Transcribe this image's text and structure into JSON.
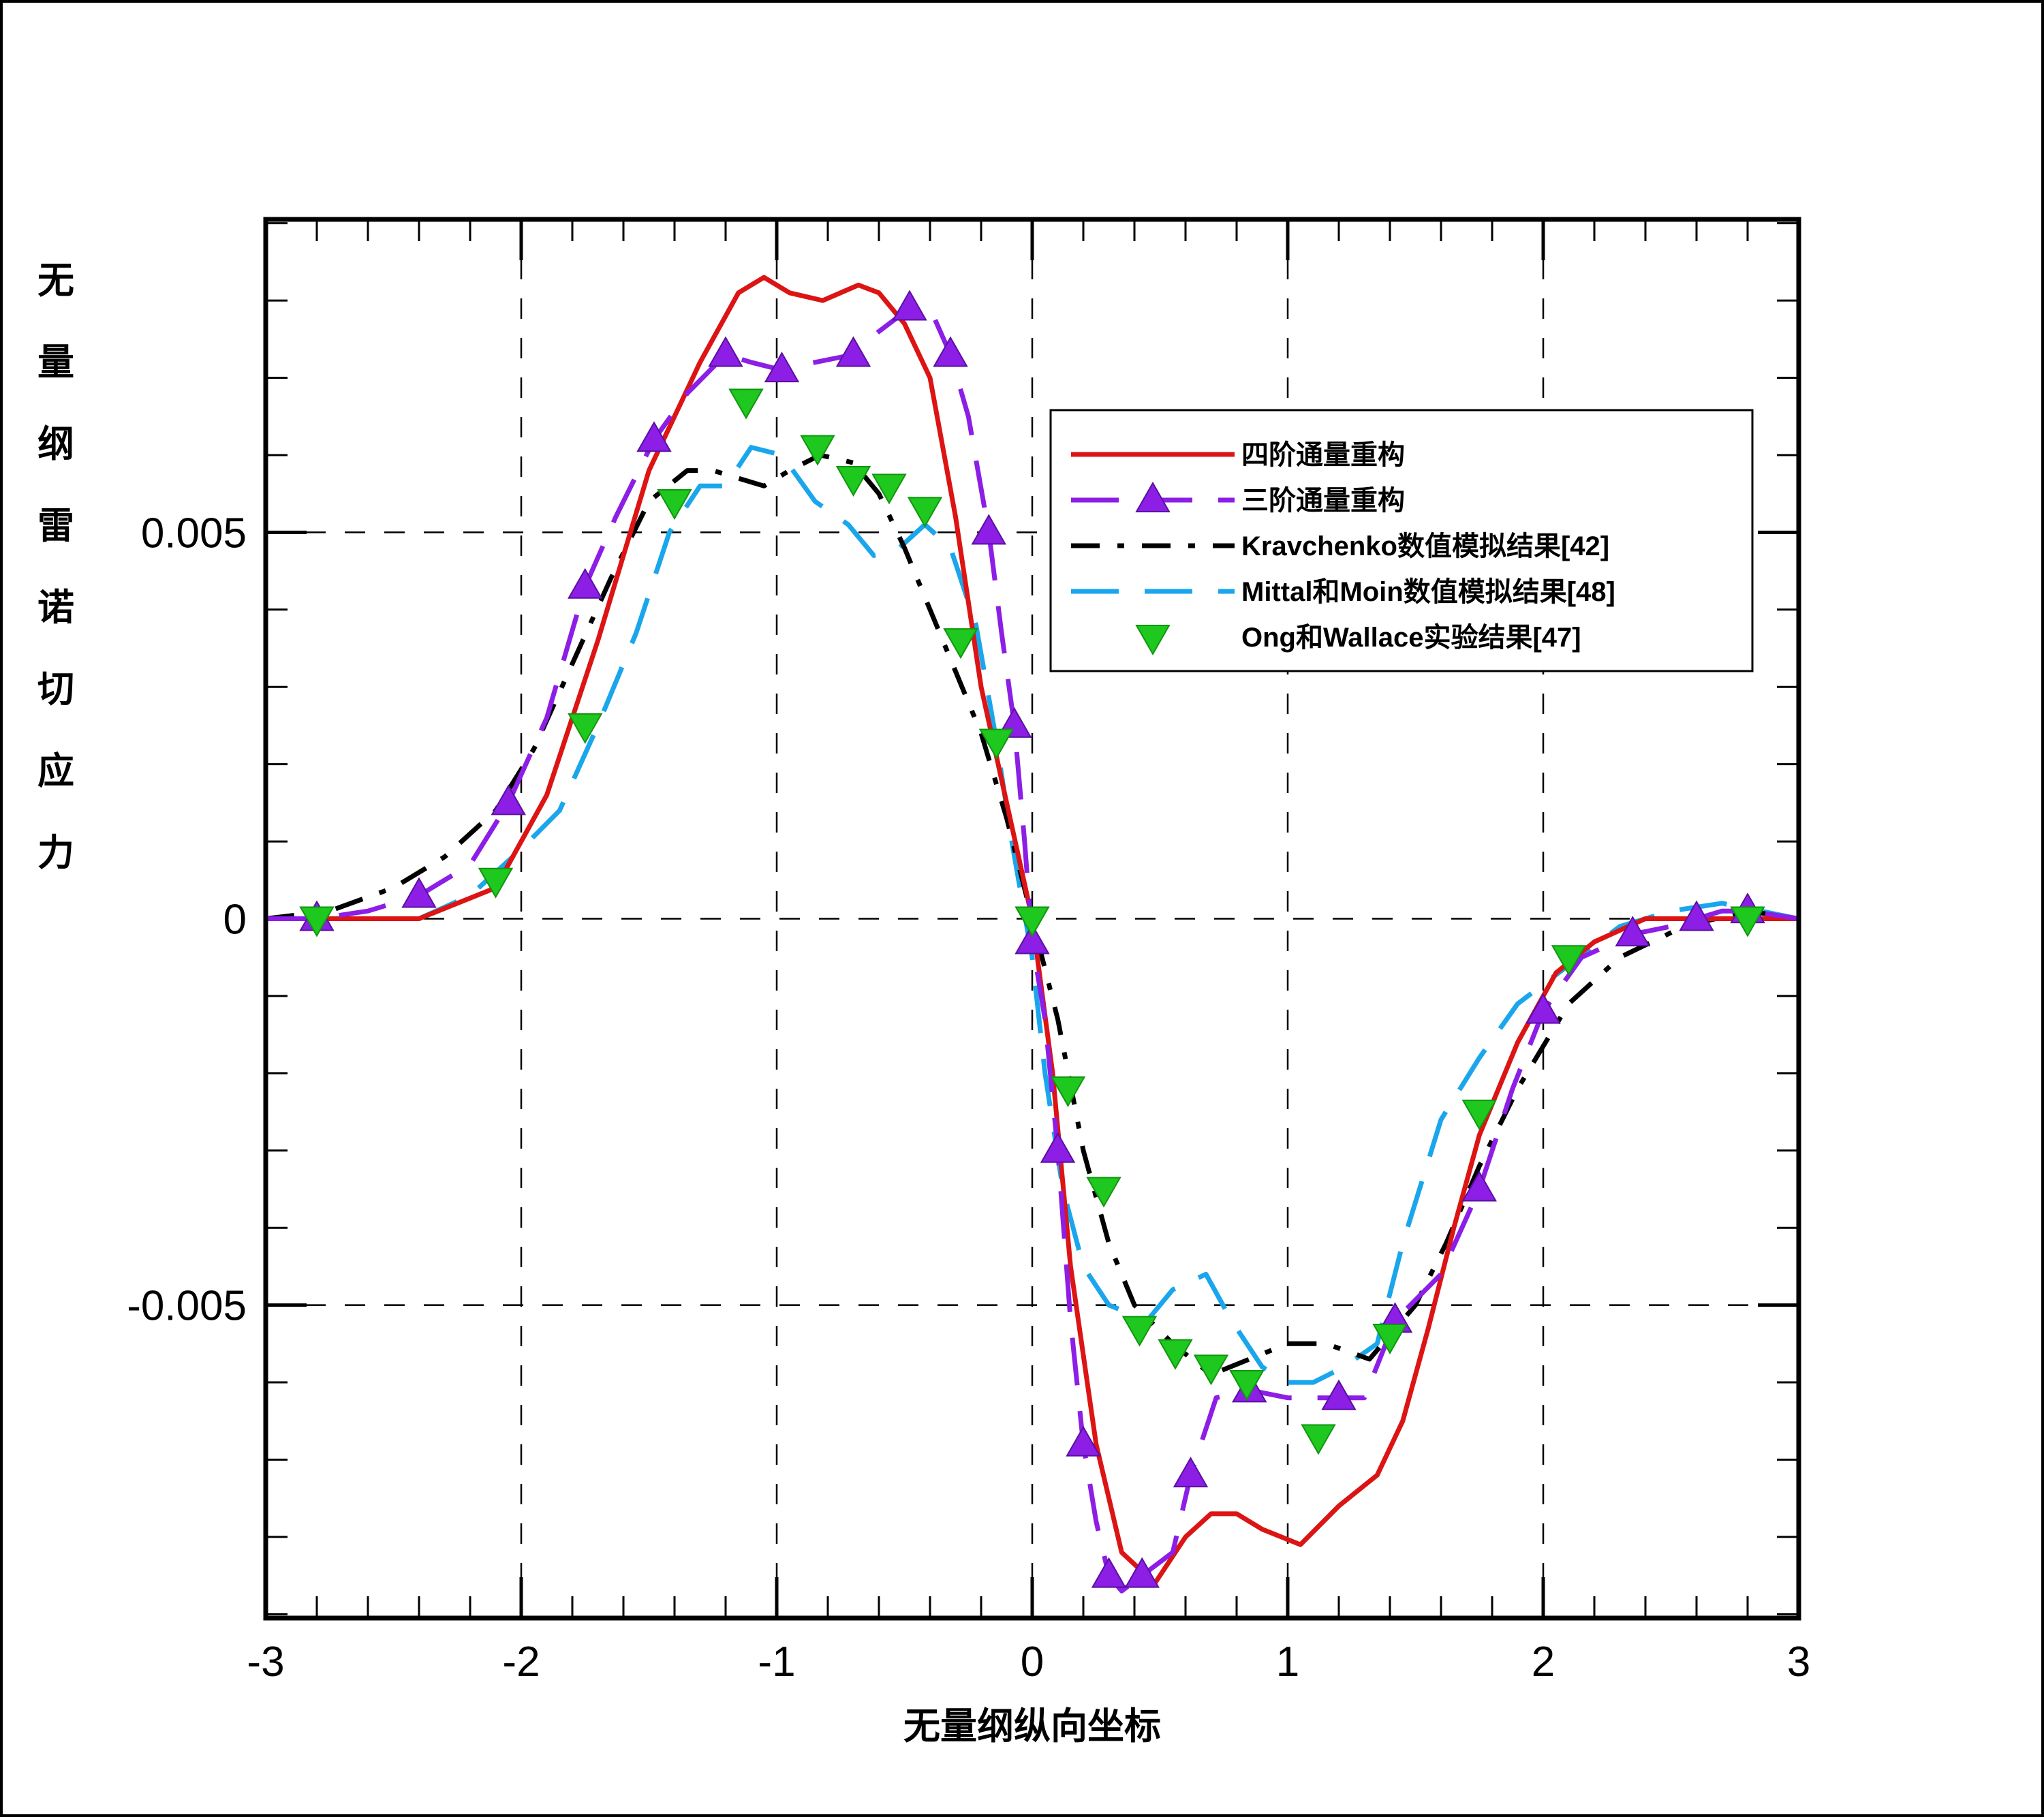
{
  "chart_data": {
    "type": "line",
    "title": "",
    "xlabel": "无量纲纵向坐标",
    "ylabel": "无量纲雷诺切应力",
    "xlim": [
      -3,
      3
    ],
    "ylim": [
      -0.00905,
      0.00905
    ],
    "grid": true,
    "legend_position": "top-right",
    "x_ticks": [
      -3,
      -2,
      -1,
      0,
      1,
      2,
      3
    ],
    "x_tick_labels": [
      "-3",
      "-2",
      "-1",
      "0",
      "1",
      "2",
      "3"
    ],
    "y_ticks": [
      -0.005,
      0,
      0.005
    ],
    "y_tick_labels": [
      "-0.005",
      "0",
      "0.005"
    ],
    "series": [
      {
        "name": "四阶通量重构",
        "color": "#dc1414",
        "style": "solid",
        "marker": "none",
        "points": [
          [
            -3,
            0
          ],
          [
            -2.4,
            0
          ],
          [
            -2.1,
            0.0004
          ],
          [
            -1.9,
            0.0016
          ],
          [
            -1.7,
            0.0036
          ],
          [
            -1.5,
            0.0058
          ],
          [
            -1.3,
            0.0072
          ],
          [
            -1.15,
            0.0081
          ],
          [
            -1.05,
            0.0083
          ],
          [
            -0.95,
            0.0081
          ],
          [
            -0.82,
            0.008
          ],
          [
            -0.68,
            0.0082
          ],
          [
            -0.6,
            0.0081
          ],
          [
            -0.5,
            0.0077
          ],
          [
            -0.4,
            0.007
          ],
          [
            -0.3,
            0.0052
          ],
          [
            -0.2,
            0.003
          ],
          [
            -0.1,
            0.0015
          ],
          [
            0,
            0
          ],
          [
            0.08,
            -0.002
          ],
          [
            0.15,
            -0.0045
          ],
          [
            0.25,
            -0.0068
          ],
          [
            0.35,
            -0.0082
          ],
          [
            0.48,
            -0.0086
          ],
          [
            0.6,
            -0.008
          ],
          [
            0.7,
            -0.0077
          ],
          [
            0.8,
            -0.0077
          ],
          [
            0.9,
            -0.0079
          ],
          [
            1.05,
            -0.0081
          ],
          [
            1.2,
            -0.0076
          ],
          [
            1.35,
            -0.0072
          ],
          [
            1.45,
            -0.0065
          ],
          [
            1.55,
            -0.0053
          ],
          [
            1.65,
            -0.004
          ],
          [
            1.75,
            -0.0028
          ],
          [
            1.9,
            -0.0016
          ],
          [
            2.05,
            -0.0007
          ],
          [
            2.2,
            -0.0003
          ],
          [
            2.4,
            0
          ],
          [
            3,
            0
          ]
        ]
      },
      {
        "name": "三阶通量重构",
        "color": "#8c1ee6",
        "style": "dashed",
        "marker": "triangle-up",
        "points": [
          [
            -3,
            0
          ],
          [
            -2.8,
            0
          ],
          [
            -2.6,
            0.0001
          ],
          [
            -2.4,
            0.0003
          ],
          [
            -2.2,
            0.0007
          ],
          [
            -2.05,
            0.0015
          ],
          [
            -1.9,
            0.0026
          ],
          [
            -1.75,
            0.0043
          ],
          [
            -1.63,
            0.0052
          ],
          [
            -1.48,
            0.0062
          ],
          [
            -1.35,
            0.0068
          ],
          [
            -1.2,
            0.0073
          ],
          [
            -1.1,
            0.0072
          ],
          [
            -0.98,
            0.0071
          ],
          [
            -0.85,
            0.0072
          ],
          [
            -0.7,
            0.0073
          ],
          [
            -0.6,
            0.0076
          ],
          [
            -0.48,
            0.0079
          ],
          [
            -0.4,
            0.0079
          ],
          [
            -0.32,
            0.0073
          ],
          [
            -0.25,
            0.0065
          ],
          [
            -0.17,
            0.005
          ],
          [
            -0.12,
            0.0037
          ],
          [
            -0.07,
            0.0025
          ],
          [
            -0.03,
            0.001
          ],
          [
            0,
            -0.0003
          ],
          [
            0.05,
            -0.0013
          ],
          [
            0.1,
            -0.003
          ],
          [
            0.15,
            -0.0052
          ],
          [
            0.2,
            -0.0068
          ],
          [
            0.25,
            -0.0078
          ],
          [
            0.3,
            -0.0085
          ],
          [
            0.35,
            -0.0087
          ],
          [
            0.43,
            -0.0085
          ],
          [
            0.55,
            -0.0082
          ],
          [
            0.62,
            -0.0072
          ],
          [
            0.72,
            -0.0062
          ],
          [
            0.85,
            -0.0061
          ],
          [
            1.0,
            -0.0062
          ],
          [
            1.2,
            -0.0062
          ],
          [
            1.3,
            -0.0062
          ],
          [
            1.42,
            -0.0052
          ],
          [
            1.6,
            -0.0046
          ],
          [
            1.75,
            -0.0035
          ],
          [
            1.88,
            -0.0022
          ],
          [
            2.0,
            -0.0012
          ],
          [
            2.15,
            -0.0005
          ],
          [
            2.35,
            -0.0002
          ],
          [
            2.5,
            -0.0001
          ],
          [
            2.6,
            0
          ],
          [
            2.7,
            0.0001
          ],
          [
            2.8,
            0.0001
          ],
          [
            3,
            0
          ]
        ]
      },
      {
        "name": "Kravchenko数值模拟结果[42]",
        "color": "#000000",
        "style": "dashdot",
        "marker": "none",
        "points": [
          [
            -3,
            0
          ],
          [
            -2.75,
            0.0001
          ],
          [
            -2.5,
            0.0004
          ],
          [
            -2.3,
            0.0008
          ],
          [
            -2.1,
            0.0014
          ],
          [
            -1.95,
            0.0022
          ],
          [
            -1.8,
            0.0033
          ],
          [
            -1.65,
            0.0044
          ],
          [
            -1.5,
            0.0054
          ],
          [
            -1.35,
            0.0058
          ],
          [
            -1.25,
            0.0058
          ],
          [
            -1.15,
            0.0057
          ],
          [
            -1.05,
            0.0056
          ],
          [
            -0.95,
            0.0058
          ],
          [
            -0.83,
            0.006
          ],
          [
            -0.7,
            0.0059
          ],
          [
            -0.6,
            0.0055
          ],
          [
            -0.5,
            0.0048
          ],
          [
            -0.4,
            0.004
          ],
          [
            -0.3,
            0.0032
          ],
          [
            -0.2,
            0.0024
          ],
          [
            -0.1,
            0.0013
          ],
          [
            0,
            0
          ],
          [
            0.1,
            -0.0013
          ],
          [
            0.2,
            -0.003
          ],
          [
            0.3,
            -0.0042
          ],
          [
            0.4,
            -0.005
          ],
          [
            0.55,
            -0.0055
          ],
          [
            0.7,
            -0.0059
          ],
          [
            0.85,
            -0.0057
          ],
          [
            1.0,
            -0.0055
          ],
          [
            1.15,
            -0.0055
          ],
          [
            1.32,
            -0.0057
          ],
          [
            1.5,
            -0.005
          ],
          [
            1.62,
            -0.0042
          ],
          [
            1.75,
            -0.0032
          ],
          [
            1.9,
            -0.0022
          ],
          [
            2.1,
            -0.0011
          ],
          [
            2.3,
            -0.0005
          ],
          [
            2.55,
            -0.0001
          ],
          [
            2.8,
            0.0001
          ],
          [
            3,
            0
          ]
        ]
      },
      {
        "name": "Mittal和Moin数值模拟结果[48]",
        "color": "#1aa6ec",
        "style": "dashed",
        "marker": "none",
        "points": [
          [
            -3,
            0
          ],
          [
            -2.75,
            0
          ],
          [
            -2.4,
            0
          ],
          [
            -2.2,
            0.0003
          ],
          [
            -2.0,
            0.0009
          ],
          [
            -1.85,
            0.0014
          ],
          [
            -1.7,
            0.0025
          ],
          [
            -1.55,
            0.0037
          ],
          [
            -1.42,
            0.005
          ],
          [
            -1.3,
            0.0056
          ],
          [
            -1.2,
            0.0056
          ],
          [
            -1.1,
            0.0061
          ],
          [
            -0.98,
            0.006
          ],
          [
            -0.85,
            0.0054
          ],
          [
            -0.72,
            0.0051
          ],
          [
            -0.62,
            0.0047
          ],
          [
            -0.52,
            0.0048
          ],
          [
            -0.42,
            0.0051
          ],
          [
            -0.32,
            0.0048
          ],
          [
            -0.22,
            0.0038
          ],
          [
            -0.14,
            0.0023
          ],
          [
            -0.08,
            0.001
          ],
          [
            0,
            -0.0005
          ],
          [
            0.05,
            -0.002
          ],
          [
            0.12,
            -0.0035
          ],
          [
            0.2,
            -0.0045
          ],
          [
            0.3,
            -0.005
          ],
          [
            0.45,
            -0.0052
          ],
          [
            0.55,
            -0.0048
          ],
          [
            0.68,
            -0.0046
          ],
          [
            0.78,
            -0.0052
          ],
          [
            0.9,
            -0.0058
          ],
          [
            1.0,
            -0.006
          ],
          [
            1.1,
            -0.006
          ],
          [
            1.22,
            -0.0058
          ],
          [
            1.35,
            -0.0055
          ],
          [
            1.45,
            -0.0042
          ],
          [
            1.6,
            -0.0026
          ],
          [
            1.75,
            -0.0018
          ],
          [
            1.9,
            -0.0011
          ],
          [
            2.1,
            -0.0006
          ],
          [
            2.3,
            -0.0001
          ],
          [
            2.5,
            0.0001
          ],
          [
            2.7,
            0.0002
          ],
          [
            3,
            0
          ]
        ]
      },
      {
        "name": "Ong和Wallace实验结果[47]",
        "color": "#1ec81e",
        "style": "none",
        "marker": "triangle-down",
        "points": [
          [
            -2.8,
            0
          ],
          [
            -2.1,
            0.0005
          ],
          [
            -1.75,
            0.0025
          ],
          [
            -1.4,
            0.0054
          ],
          [
            -1.12,
            0.0067
          ],
          [
            -0.84,
            0.0061
          ],
          [
            -0.7,
            0.0057
          ],
          [
            -0.56,
            0.0056
          ],
          [
            -0.42,
            0.0053
          ],
          [
            -0.28,
            0.0036
          ],
          [
            -0.14,
            0.0023
          ],
          [
            0,
            0
          ],
          [
            0.14,
            -0.0022
          ],
          [
            0.28,
            -0.0035
          ],
          [
            0.42,
            -0.0053
          ],
          [
            0.56,
            -0.0056
          ],
          [
            0.7,
            -0.0058
          ],
          [
            0.84,
            -0.006
          ],
          [
            1.12,
            -0.0067
          ],
          [
            1.4,
            -0.0054
          ],
          [
            1.75,
            -0.0025
          ],
          [
            2.1,
            -0.0005
          ],
          [
            2.8,
            0
          ]
        ]
      }
    ]
  }
}
